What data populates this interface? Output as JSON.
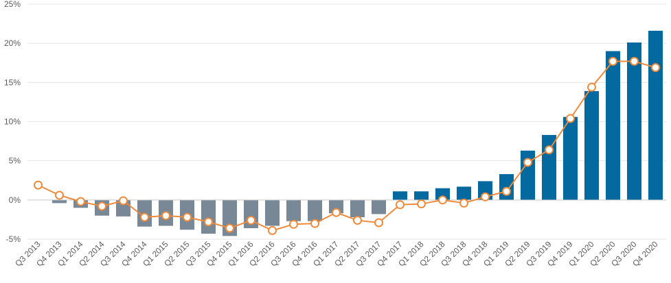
{
  "chart_data": {
    "type": "bar",
    "title": "",
    "xlabel": "",
    "ylabel": "",
    "ylim": [
      -5,
      25
    ],
    "y_tick_step": 5,
    "y_tick_suffix": "%",
    "grid": true,
    "legend": "none",
    "categories": [
      "Q3 2013",
      "Q4 2013",
      "Q1 2014",
      "Q2 2014",
      "Q3 2014",
      "Q4 2014",
      "Q1 2015",
      "Q2 2015",
      "Q3 2015",
      "Q4 2015",
      "Q1 2016",
      "Q2 2016",
      "Q3 2016",
      "Q4 2016",
      "Q1 2017",
      "Q2 2017",
      "Q3 2017",
      "Q4 2017",
      "Q1 2018",
      "Q2 2018",
      "Q3 2018",
      "Q4 2018",
      "Q1 2019",
      "Q2 2019",
      "Q3 2019",
      "Q4 2019",
      "Q1 2020",
      "Q2 2020",
      "Q3 2020",
      "Q4 2020"
    ],
    "series": [
      {
        "type": "bar",
        "values": [
          null,
          -0.4,
          -1.0,
          -2.0,
          -2.1,
          -3.4,
          -3.3,
          -3.8,
          -4.3,
          -4.6,
          -3.6,
          -3.3,
          -2.7,
          -2.7,
          -1.7,
          -2.2,
          -1.8,
          1.1,
          1.1,
          1.5,
          1.7,
          2.4,
          3.3,
          6.3,
          8.3,
          10.6,
          13.9,
          19.0,
          20.1,
          21.6
        ],
        "color_negative": "#788896",
        "color_positive": "#03699f"
      },
      {
        "type": "line",
        "values": [
          1.9,
          0.6,
          -0.2,
          -0.8,
          -0.1,
          -2.2,
          -2.0,
          -2.2,
          -2.8,
          -3.6,
          -2.6,
          -3.9,
          -3.1,
          -3.0,
          -1.6,
          -2.6,
          -2.9,
          -0.6,
          -0.5,
          0.0,
          -0.4,
          0.4,
          1.1,
          4.8,
          6.4,
          10.4,
          14.4,
          17.7,
          17.7,
          16.9
        ],
        "color": "#ee8a3a",
        "marker_fill": "#ffffff"
      }
    ]
  }
}
